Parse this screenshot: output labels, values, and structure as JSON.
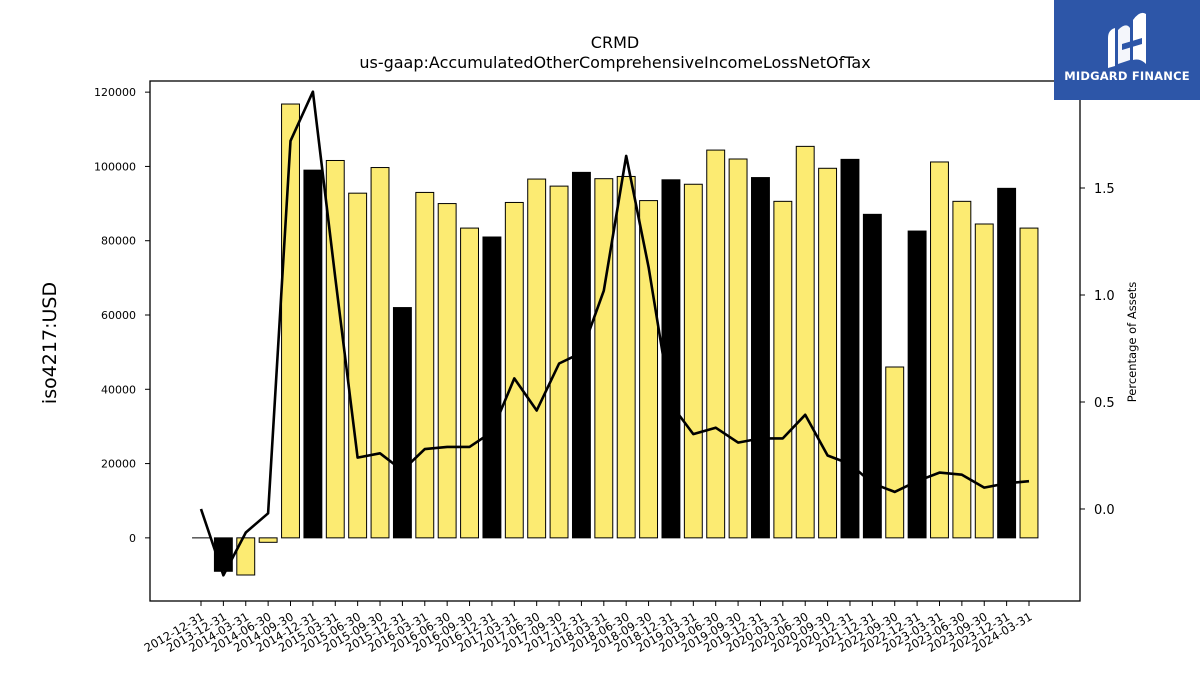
{
  "logo": {
    "text": "MIDGARD FINANCE",
    "icon": "mf-monogram-icon",
    "background": "#2d56a8"
  },
  "chart_data": {
    "type": "bar",
    "title": "CRMD",
    "subtitle": "us-gaap:AccumulatedOtherComprehensiveIncomeLossNetOfTax",
    "ylabel": "iso4217:USD",
    "y2label": "Percentage of Assets",
    "ylim": [
      -17000,
      123000
    ],
    "y2lim": [
      -0.43,
      2.0
    ],
    "yticks": [
      "0",
      "20000",
      "40000",
      "60000",
      "80000",
      "100000",
      "120000"
    ],
    "y2ticks": [
      "0.0",
      "0.5",
      "1.0",
      "1.5"
    ],
    "grid": false,
    "categories": [
      "2012-12-31",
      "2013-12-31",
      "2014-03-31",
      "2014-06-30",
      "2014-09-30",
      "2014-12-31",
      "2015-03-31",
      "2015-06-30",
      "2015-09-30",
      "2015-12-31",
      "2016-03-31",
      "2016-06-30",
      "2016-09-30",
      "2016-12-31",
      "2017-03-31",
      "2017-06-30",
      "2017-09-30",
      "2017-12-31",
      "2018-03-31",
      "2018-06-30",
      "2018-09-30",
      "2018-12-31",
      "2019-03-31",
      "2019-06-30",
      "2019-09-30",
      "2019-12-31",
      "2020-03-31",
      "2020-06-30",
      "2020-09-30",
      "2020-12-31",
      "2021-12-31",
      "2022-09-30",
      "2022-12-31",
      "2023-03-31",
      "2023-06-30",
      "2023-09-30",
      "2023-12-31",
      "2024-03-31"
    ],
    "series": [
      {
        "type": "bar",
        "values": [
          0,
          -9000,
          -10000,
          -1200,
          116800,
          99000,
          101600,
          92800,
          99700,
          62000,
          93000,
          90000,
          83400,
          81000,
          90300,
          96600,
          94700,
          98400,
          96700,
          97300,
          90800,
          96400,
          95200,
          104400,
          102000,
          97000,
          90600,
          105400,
          99500,
          101900,
          87100,
          46000,
          82600,
          101200,
          90600,
          84500,
          94100,
          83400
        ],
        "colors": [
          "none",
          "#000000",
          "#fceb72",
          "#fceb72",
          "#fceb72",
          "#000000",
          "#fceb72",
          "#fceb72",
          "#fceb72",
          "#000000",
          "#fceb72",
          "#fceb72",
          "#fceb72",
          "#000000",
          "#fceb72",
          "#fceb72",
          "#fceb72",
          "#000000",
          "#fceb72",
          "#fceb72",
          "#fceb72",
          "#000000",
          "#fceb72",
          "#fceb72",
          "#fceb72",
          "#000000",
          "#fceb72",
          "#fceb72",
          "#fceb72",
          "#000000",
          "#000000",
          "#fceb72",
          "#000000",
          "#fceb72",
          "#fceb72",
          "#fceb72",
          "#000000",
          "#fceb72"
        ]
      },
      {
        "type": "line",
        "axis": "right",
        "color": "#000000",
        "values": [
          0.0,
          -0.31,
          -0.11,
          -0.02,
          1.72,
          1.95,
          1.08,
          0.24,
          0.26,
          0.18,
          0.28,
          0.29,
          0.29,
          0.36,
          0.61,
          0.46,
          0.68,
          0.73,
          1.02,
          1.65,
          1.13,
          0.49,
          0.35,
          0.38,
          0.31,
          0.33,
          0.33,
          0.44,
          0.25,
          0.21,
          0.12,
          0.08,
          0.13,
          0.17,
          0.16,
          0.1,
          0.12,
          0.13
        ]
      }
    ]
  }
}
